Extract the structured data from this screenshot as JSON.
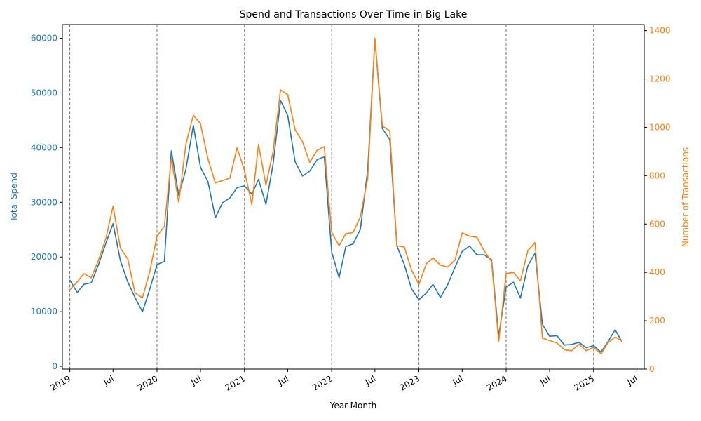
{
  "chart_data": {
    "type": "line",
    "title": "Spend and Transactions Over Time in Big Lake",
    "xlabel": "Year-Month",
    "ylabel_left": "Total Spend",
    "ylabel_right": "Number of Transactions",
    "ylim_left": [
      -500,
      62500
    ],
    "ylim_right": [
      0,
      1425
    ],
    "xlim": [
      "2018-12-01",
      "2025-08-01"
    ],
    "yticks_left": [
      0,
      10000,
      20000,
      30000,
      40000,
      50000,
      60000
    ],
    "yticks_right": [
      0,
      200,
      400,
      600,
      800,
      1000,
      1200,
      1400
    ],
    "xticks": [
      {
        "date": "2019-01-01",
        "label": "2019"
      },
      {
        "date": "2019-07-01",
        "label": "Jul"
      },
      {
        "date": "2020-01-01",
        "label": "2020"
      },
      {
        "date": "2020-07-01",
        "label": "Jul"
      },
      {
        "date": "2021-01-01",
        "label": "2021"
      },
      {
        "date": "2021-07-01",
        "label": "Jul"
      },
      {
        "date": "2022-01-01",
        "label": "2022"
      },
      {
        "date": "2022-07-01",
        "label": "Jul"
      },
      {
        "date": "2023-01-01",
        "label": "2023"
      },
      {
        "date": "2023-07-01",
        "label": "Jul"
      },
      {
        "date": "2024-01-01",
        "label": "2024"
      },
      {
        "date": "2024-07-01",
        "label": "Jul"
      },
      {
        "date": "2025-01-01",
        "label": "2025"
      },
      {
        "date": "2025-07-01",
        "label": "Jul"
      }
    ],
    "year_lines": [
      "2019-01-01",
      "2020-01-01",
      "2021-01-01",
      "2022-01-01",
      "2023-01-01",
      "2024-01-01",
      "2025-01-01"
    ],
    "grid": false,
    "legend": "none",
    "start": "2019-01",
    "series": [
      {
        "axis": "left",
        "color": "#1f77b4",
        "values": [
          15800,
          13500,
          15000,
          15300,
          18600,
          22500,
          26100,
          19300,
          15400,
          12600,
          10000,
          14000,
          18600,
          19200,
          39400,
          31300,
          36000,
          44100,
          36400,
          33800,
          27200,
          29900,
          30800,
          32700,
          33000,
          31500,
          34200,
          29600,
          37000,
          48600,
          45900,
          37400,
          34800,
          35700,
          37800,
          38300,
          20900,
          16200,
          21900,
          22400,
          25100,
          36000,
          59800,
          43500,
          41500,
          22000,
          18600,
          14200,
          12200,
          13400,
          15000,
          12600,
          14900,
          18100,
          21000,
          22000,
          20400,
          20400,
          19500,
          5600,
          14500,
          15400,
          12500,
          18400,
          20700,
          7700,
          5500,
          5600,
          3900,
          4000,
          4400,
          3400,
          3800,
          2600,
          4400,
          6700,
          4400
        ]
      },
      {
        "axis": "right",
        "color": "#ff7f0e",
        "values": [
          328,
          360,
          395,
          378,
          450,
          540,
          673,
          500,
          455,
          315,
          295,
          400,
          550,
          590,
          870,
          690,
          930,
          1050,
          1015,
          870,
          770,
          780,
          790,
          915,
          822,
          680,
          930,
          760,
          900,
          1155,
          1135,
          990,
          940,
          855,
          905,
          920,
          565,
          510,
          560,
          565,
          630,
          790,
          1368,
          1005,
          985,
          510,
          505,
          410,
          350,
          435,
          460,
          430,
          422,
          450,
          563,
          550,
          545,
          490,
          445,
          115,
          395,
          400,
          365,
          490,
          523,
          128,
          118,
          108,
          80,
          76,
          103,
          76,
          90,
          63,
          107,
          133,
          115
        ]
      }
    ]
  }
}
